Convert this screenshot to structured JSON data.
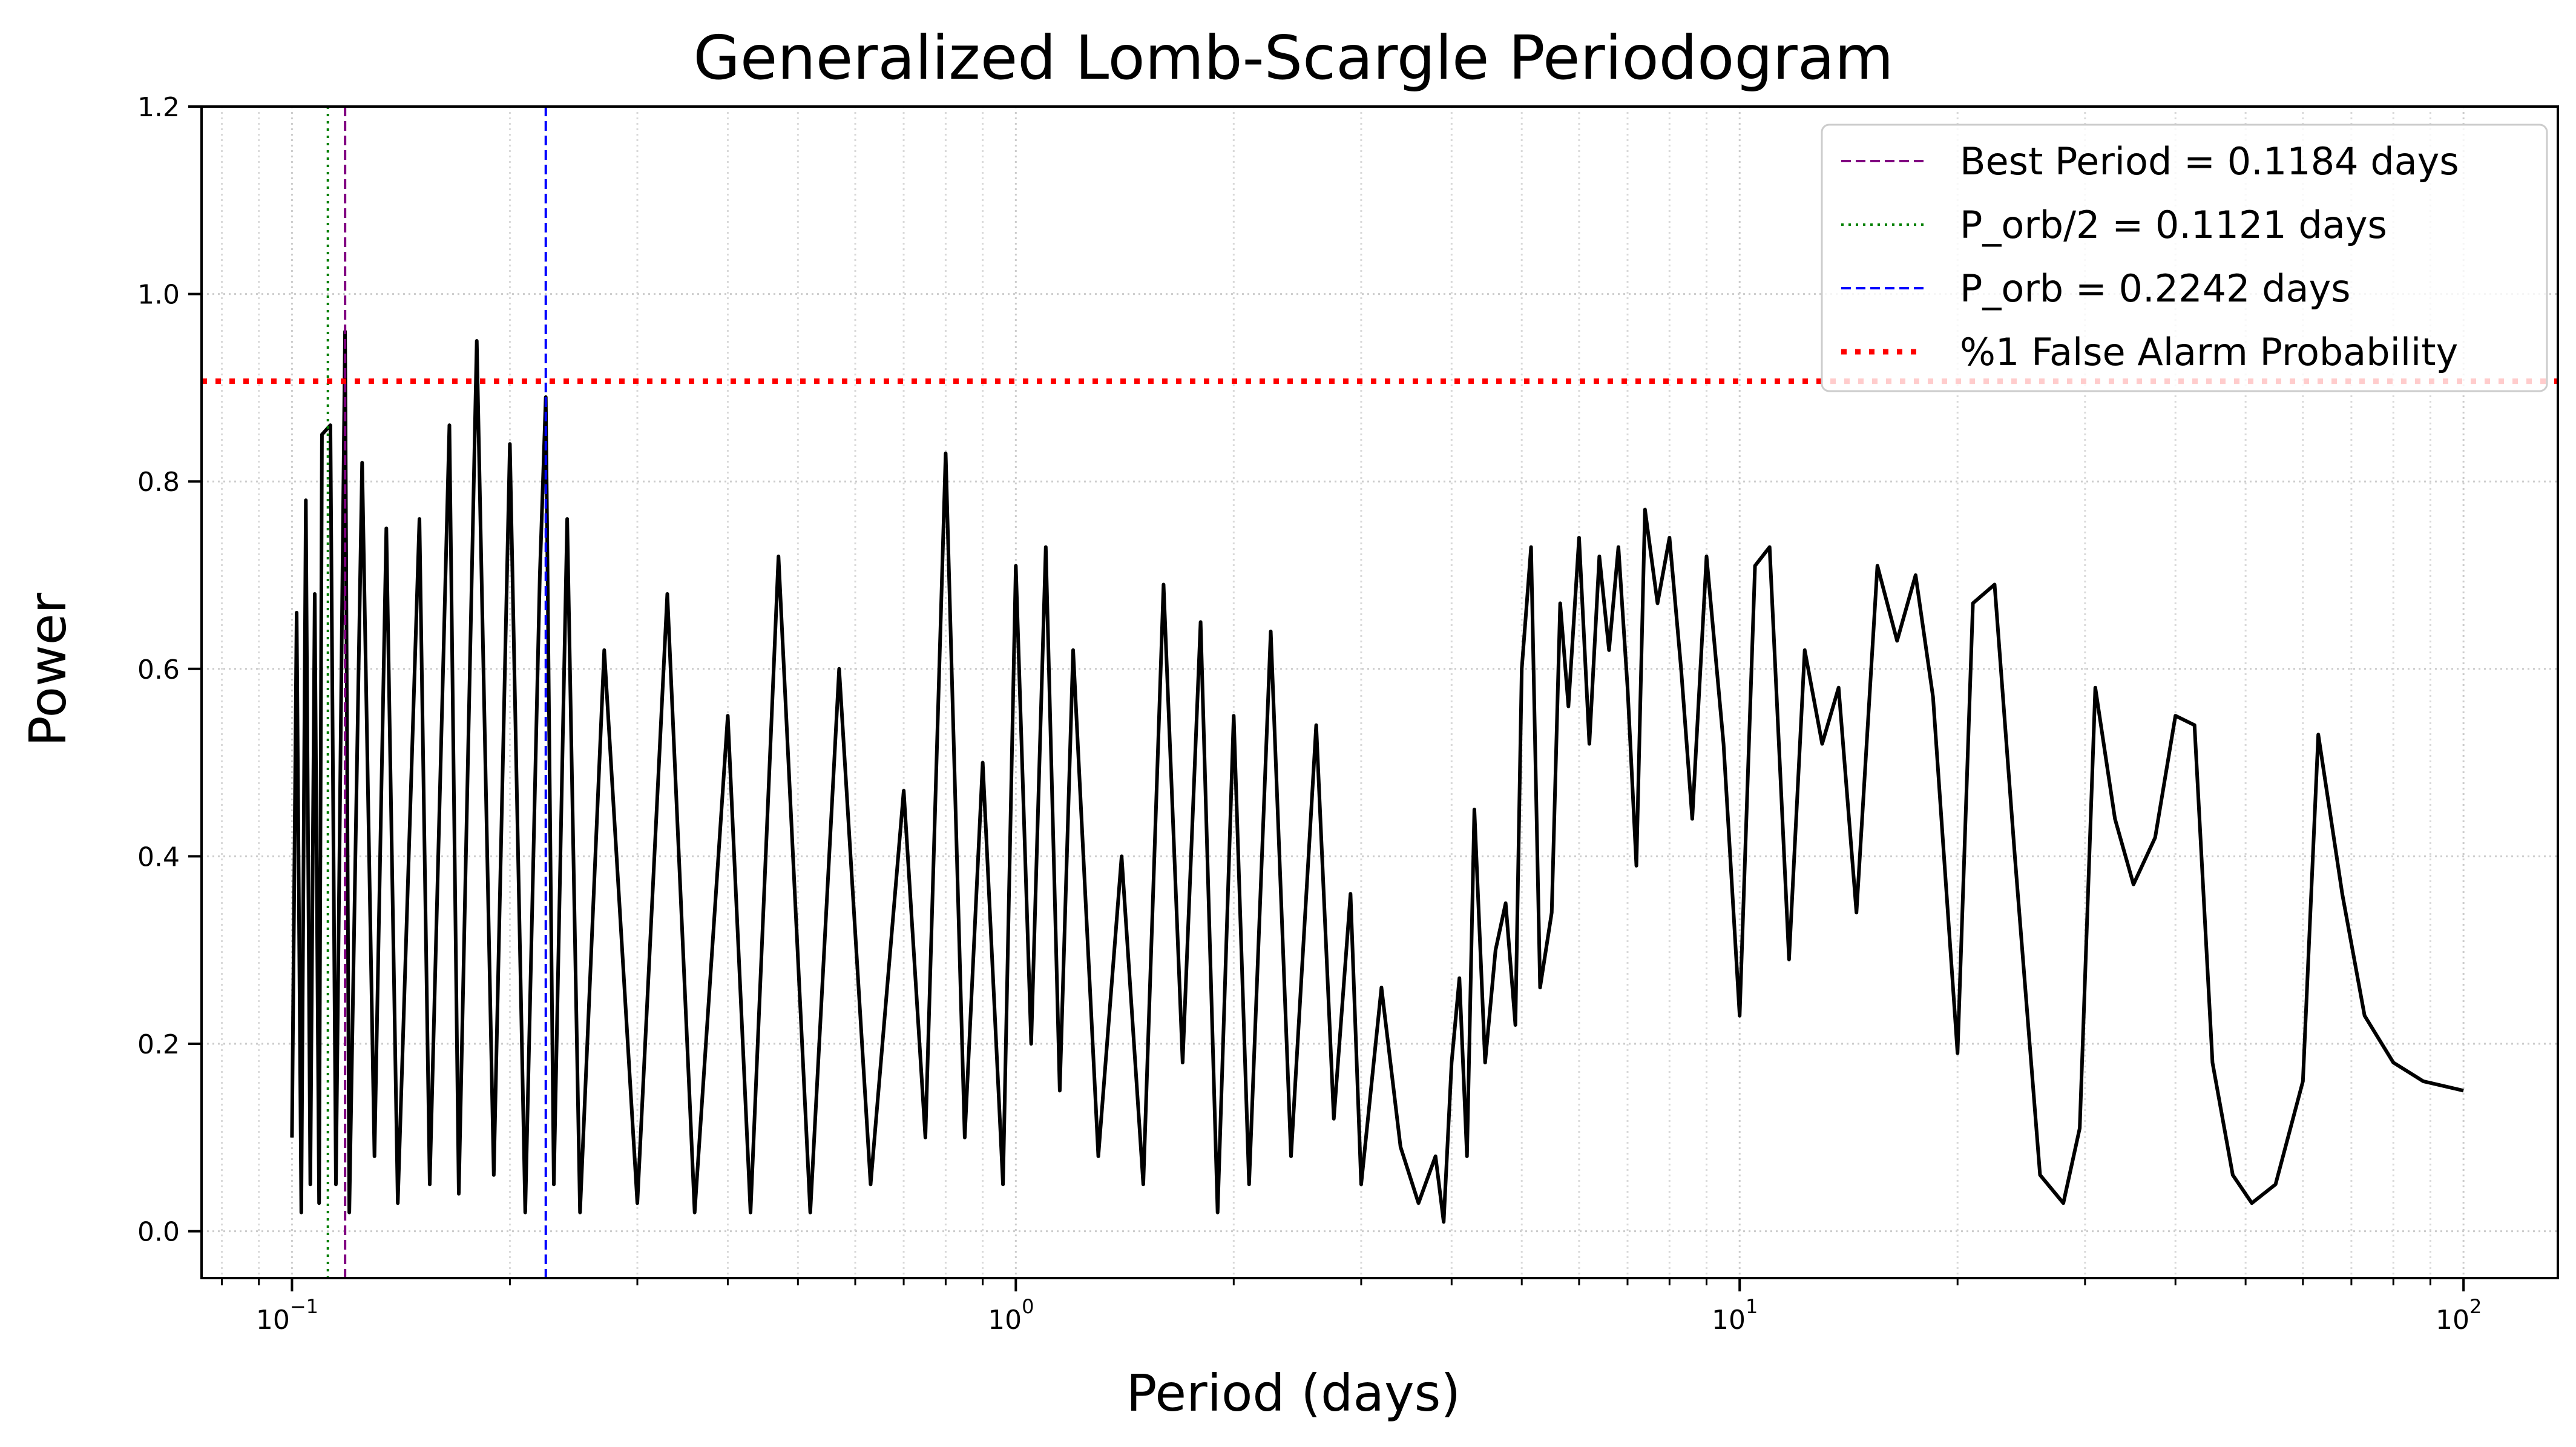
{
  "chart_data": {
    "type": "line",
    "title": "Generalized Lomb-Scargle Periodogram",
    "xlabel": "Period (days)",
    "ylabel": "Power",
    "xscale": "log",
    "xlim": [
      0.075,
      135
    ],
    "ylim": [
      -0.05,
      1.2
    ],
    "xticks": [
      {
        "value": 0.1,
        "base": "10",
        "exp": "−1"
      },
      {
        "value": 1,
        "base": "10",
        "exp": "0"
      },
      {
        "value": 10,
        "base": "10",
        "exp": "1"
      },
      {
        "value": 100,
        "base": "10",
        "exp": "2"
      }
    ],
    "yticks": [
      {
        "value": 0.0,
        "label": "0.0"
      },
      {
        "value": 0.2,
        "label": "0.2"
      },
      {
        "value": 0.4,
        "label": "0.4"
      },
      {
        "value": 0.6,
        "label": "0.6"
      },
      {
        "value": 0.8,
        "label": "0.8"
      },
      {
        "value": 1.0,
        "label": "1.0"
      },
      {
        "value": 1.2,
        "label": "1.2"
      }
    ],
    "grid": true,
    "legend_position": "top-right",
    "vlines": [
      {
        "x": 0.1184,
        "label": "Best Period = 0.1184 days",
        "color": "#800080",
        "style": "dashed"
      },
      {
        "x": 0.1121,
        "label": "P_orb/2 = 0.1121 days",
        "color": "#008000",
        "style": "dotted"
      },
      {
        "x": 0.2242,
        "label": "P_orb = 0.2242 days",
        "color": "#0000ff",
        "style": "dashed"
      }
    ],
    "hlines": [
      {
        "y": 0.907,
        "label": "%1 False Alarm Probability",
        "color": "#ff0000",
        "style": "dotted"
      }
    ],
    "series": [
      {
        "color": "#000000",
        "x": [
          0.1,
          0.1015,
          0.103,
          0.1045,
          0.106,
          0.1075,
          0.109,
          0.11,
          0.113,
          0.115,
          0.1184,
          0.12,
          0.125,
          0.13,
          0.135,
          0.14,
          0.15,
          0.155,
          0.165,
          0.17,
          0.18,
          0.19,
          0.2,
          0.21,
          0.22,
          0.2242,
          0.23,
          0.24,
          0.25,
          0.27,
          0.3,
          0.33,
          0.36,
          0.4,
          0.43,
          0.47,
          0.52,
          0.57,
          0.63,
          0.7,
          0.75,
          0.8,
          0.85,
          0.9,
          0.96,
          1.0,
          1.05,
          1.1,
          1.15,
          1.2,
          1.3,
          1.4,
          1.5,
          1.6,
          1.7,
          1.8,
          1.9,
          2.0,
          2.1,
          2.25,
          2.4,
          2.6,
          2.75,
          2.9,
          3.0,
          3.2,
          3.4,
          3.6,
          3.8,
          3.9,
          4.0,
          4.1,
          4.2,
          4.3,
          4.45,
          4.6,
          4.75,
          4.9,
          5.0,
          5.15,
          5.3,
          5.5,
          5.65,
          5.8,
          6.0,
          6.2,
          6.4,
          6.6,
          6.8,
          7.0,
          7.2,
          7.4,
          7.7,
          8.0,
          8.3,
          8.6,
          9.0,
          9.5,
          10.0,
          10.5,
          11.0,
          11.7,
          12.3,
          13.0,
          13.7,
          14.5,
          15.5,
          16.5,
          17.5,
          18.5,
          20.0,
          21.0,
          22.5,
          24.0,
          26.0,
          28.0,
          29.5,
          31.0,
          33.0,
          35.0,
          37.5,
          40.0,
          42.5,
          45.0,
          48.0,
          51.0,
          55.0,
          60.0,
          63.0,
          68.0,
          73.0,
          80.0,
          88.0,
          100.0
        ],
        "y": [
          0.1,
          0.66,
          0.02,
          0.78,
          0.05,
          0.68,
          0.03,
          0.85,
          0.86,
          0.05,
          0.96,
          0.02,
          0.82,
          0.08,
          0.75,
          0.03,
          0.76,
          0.05,
          0.86,
          0.04,
          0.95,
          0.06,
          0.84,
          0.02,
          0.7,
          0.89,
          0.05,
          0.76,
          0.02,
          0.62,
          0.03,
          0.68,
          0.02,
          0.55,
          0.02,
          0.72,
          0.02,
          0.6,
          0.05,
          0.47,
          0.1,
          0.83,
          0.1,
          0.5,
          0.05,
          0.71,
          0.2,
          0.73,
          0.15,
          0.62,
          0.08,
          0.4,
          0.05,
          0.69,
          0.18,
          0.65,
          0.02,
          0.55,
          0.05,
          0.64,
          0.08,
          0.54,
          0.12,
          0.36,
          0.05,
          0.26,
          0.09,
          0.03,
          0.08,
          0.01,
          0.18,
          0.27,
          0.08,
          0.45,
          0.18,
          0.3,
          0.35,
          0.22,
          0.6,
          0.73,
          0.26,
          0.34,
          0.67,
          0.56,
          0.74,
          0.52,
          0.72,
          0.62,
          0.73,
          0.58,
          0.39,
          0.77,
          0.67,
          0.74,
          0.6,
          0.44,
          0.72,
          0.52,
          0.23,
          0.71,
          0.73,
          0.29,
          0.62,
          0.52,
          0.58,
          0.34,
          0.71,
          0.63,
          0.7,
          0.57,
          0.19,
          0.67,
          0.69,
          0.4,
          0.06,
          0.03,
          0.11,
          0.58,
          0.44,
          0.37,
          0.42,
          0.55,
          0.54,
          0.18,
          0.06,
          0.03,
          0.05,
          0.16,
          0.53,
          0.36,
          0.23,
          0.18,
          0.16,
          0.15
        ]
      }
    ],
    "legend": [
      {
        "label": "Best Period = 0.1184 days",
        "color": "#800080",
        "style": "dashed"
      },
      {
        "label": "P_orb/2 = 0.1121 days",
        "color": "#008000",
        "style": "dotted"
      },
      {
        "label": "P_orb = 0.2242 days",
        "color": "#0000ff",
        "style": "dashed"
      },
      {
        "label": "%1 False Alarm Probability",
        "color": "#ff0000",
        "style": "dotted"
      }
    ]
  }
}
